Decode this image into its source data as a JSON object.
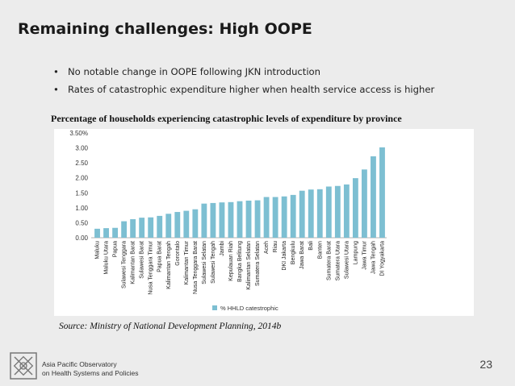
{
  "slide": {
    "title": "Remaining challenges: High OOPE",
    "bullets": [
      "No notable change in OOPE following JKN introduction",
      "Rates of catastrophic expenditure higher when health service access is higher"
    ],
    "bullet_symbol": "•",
    "source": "Source: Ministry of National Development Planning, 2014b",
    "page_number": "23"
  },
  "footer": {
    "org_line1": "Asia Pacific Observatory",
    "org_line2": "on Health Systems and Policies",
    "logo_icon": "observatory-knot-logo"
  },
  "colors": {
    "bar": "#7dbfd2",
    "background": "#ececec"
  },
  "chart_data": {
    "type": "bar",
    "title": "Percentage of households experiencing catastrophic levels of expenditure by province",
    "xlabel": "",
    "ylabel": "",
    "ylim": [
      0,
      3.5
    ],
    "yticks": [
      "0.00",
      "0.50",
      "1.00",
      "1.50",
      "2.00",
      "2.50",
      "3.00",
      "3.50%"
    ],
    "grid": false,
    "legend_position": "bottom",
    "categories": [
      "Maluku",
      "Maluku Utara",
      "Papua",
      "Sulawesi Tenggara",
      "Kalimantan Barat",
      "Sulawesi Barat",
      "Nusa Tenggara Timur",
      "Papua Barat",
      "Kalimantan Tengah",
      "Gorontalo",
      "Kalimantan Timur",
      "Nusa Tenggara Barat",
      "Sulawesi Selatan",
      "Sulawesi Tengah",
      "Jambi",
      "Kepulauan Riah",
      "Bangka Belitung",
      "Kalimantan Selatan",
      "Sumatera Selatan",
      "Aceh",
      "Riau",
      "DKI Jakarta",
      "Bengkulu",
      "Jawa Barat",
      "Bali",
      "Banten",
      "Sumatera Barat",
      "Sumatera Utara",
      "Sulawesi Utara",
      "Lampung",
      "Jawa Timur",
      "Jawa Tengah",
      "DI Yogyakarta"
    ],
    "series": [
      {
        "name": "% HHLD catestrophic",
        "values": [
          0.3,
          0.32,
          0.33,
          0.55,
          0.62,
          0.67,
          0.68,
          0.73,
          0.8,
          0.86,
          0.9,
          0.95,
          1.14,
          1.16,
          1.18,
          1.19,
          1.22,
          1.24,
          1.25,
          1.36,
          1.36,
          1.38,
          1.43,
          1.57,
          1.61,
          1.62,
          1.71,
          1.73,
          1.78,
          1.99,
          2.28,
          2.72,
          3.02
        ]
      }
    ]
  }
}
